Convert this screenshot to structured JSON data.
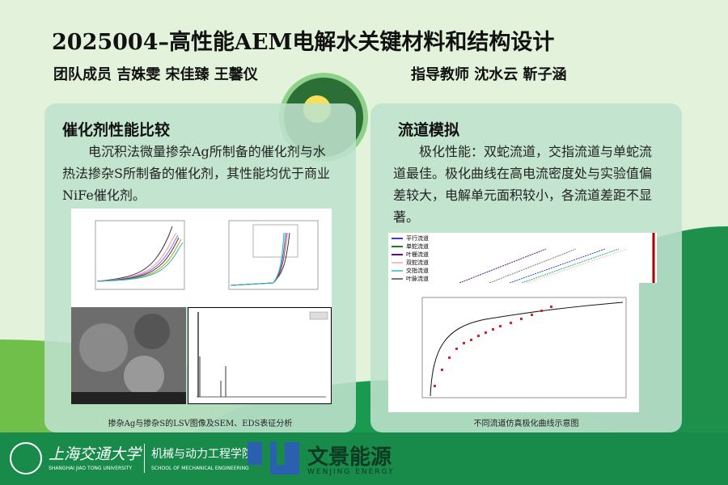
{
  "header": {
    "title": "2025004–高性能AEM电解水关键材料和结构设计",
    "members": "团队成员 吉姝雯 宋佳臻 王馨仪",
    "advisors": "指导教师 沈水云 靳子涵"
  },
  "left_panel": {
    "title": "催化剂性能比较",
    "body": "电沉积法微量掺杂Ag所制备的催化剂与水热法掺杂S所制备的催化剂，其性能均优于商业NiFe催化剂。",
    "caption": "掺杂Ag与掺杂S的LSV图像及SEM、EDS表征分析"
  },
  "right_panel": {
    "title": "流道模拟",
    "body": "极化性能：双蛇流道，交指流道与单蛇流道最佳。极化曲线在高电流密度处与实验值偏差较大，电解单元面积较小，各流道差距不显著。",
    "caption": "不同流道仿真极化曲线示意图",
    "legend": [
      {
        "label": "平行流道",
        "color": "#3344cc"
      },
      {
        "label": "单蛇流道",
        "color": "#227722"
      },
      {
        "label": "叶栅流道",
        "color": "#551177"
      },
      {
        "label": "双蛇流道",
        "color": "#f0c0c8"
      },
      {
        "label": "交指流道",
        "color": "#66cccc"
      },
      {
        "label": "叶脉流道",
        "color": "#777777"
      }
    ]
  },
  "footer": {
    "univ_cn": "上海交通大学",
    "univ_en": "SHANGHAI JIAO TONG UNIVERSITY",
    "school_cn": "机械与动力工程学院",
    "school_en": "SCHOOL OF MECHANICAL ENGINEERING",
    "sponsor_cn": "文景能源",
    "sponsor_en": "WENJING ENERGY"
  },
  "colors": {
    "background": "#e3f2db",
    "footer": "#188a4a",
    "panel": "#bee1cd",
    "sponsor_blue": "#2b5fb0"
  }
}
